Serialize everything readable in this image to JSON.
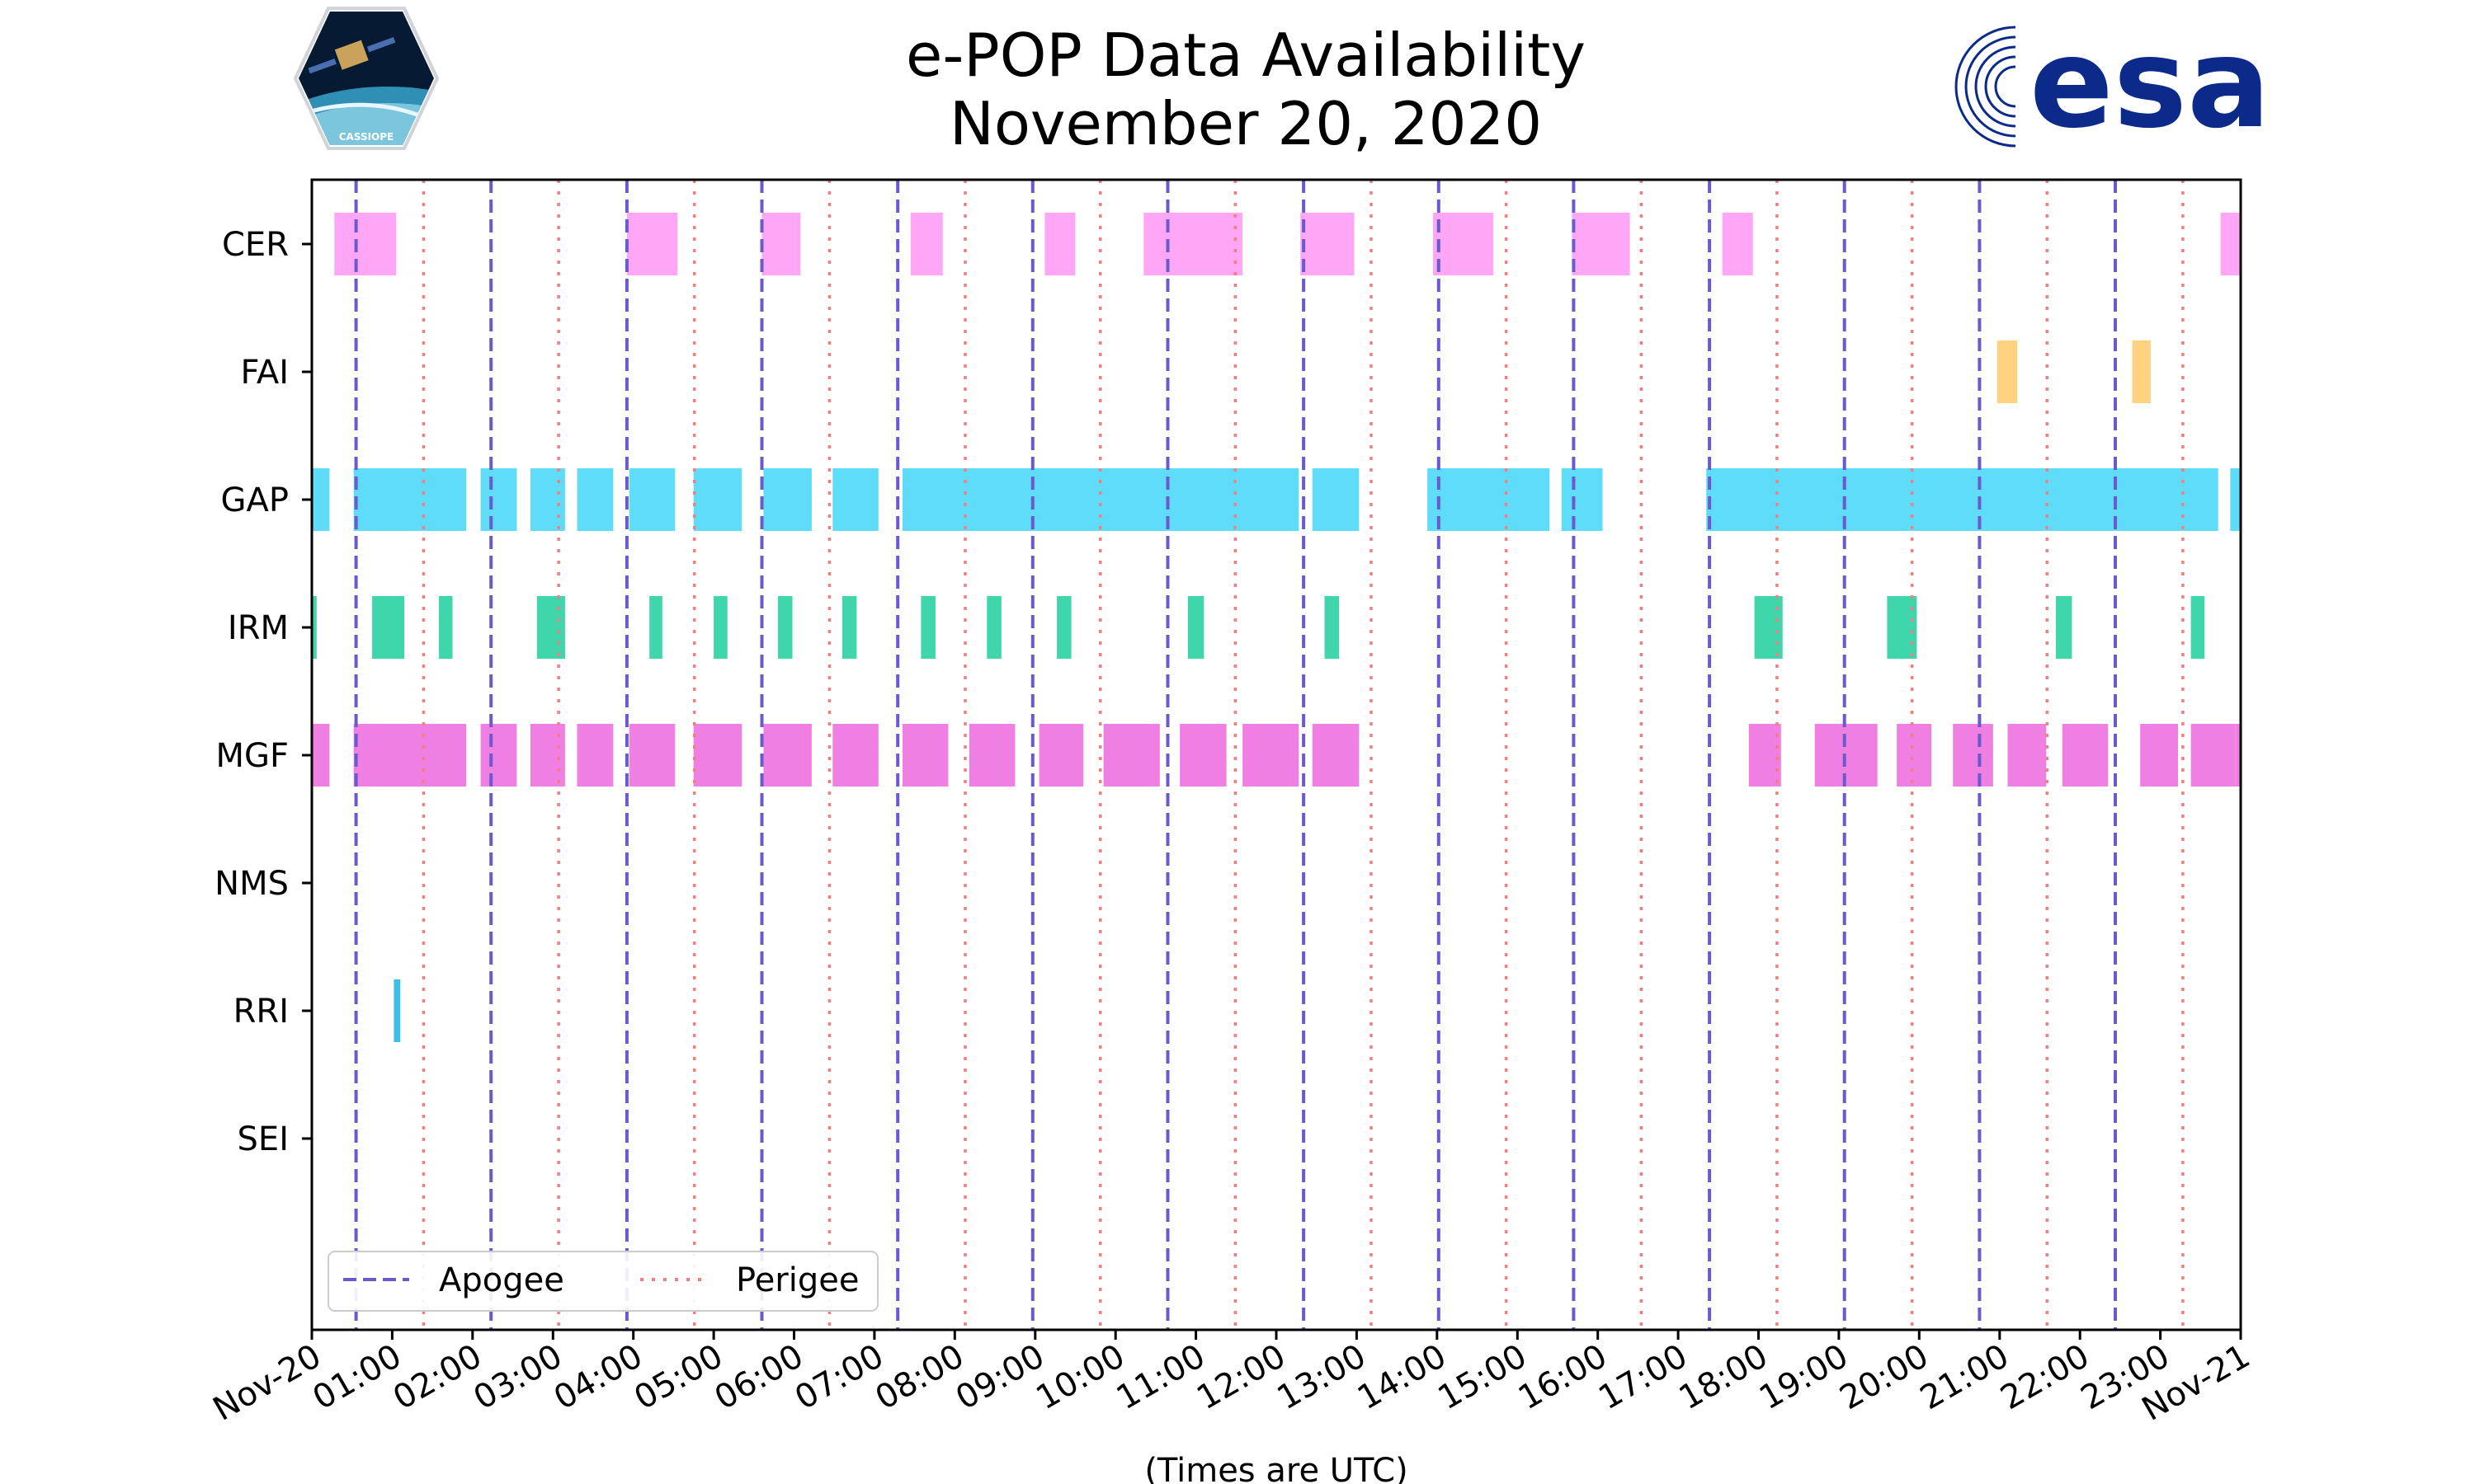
{
  "header": {
    "title_line1": "e-POP Data Availability",
    "title_line2": "November 20, 2020"
  },
  "logos": {
    "left_badge_text": "CASSIOPE",
    "right_brand_text": "esa"
  },
  "colors": {
    "apogee": "#6A5ACD",
    "perigee": "#F08080",
    "CER": "#FFA6F6",
    "FAI": "#FFD27F",
    "GAP": "#5EDCF9",
    "IRM": "#3ED6AA",
    "MGF": "#F07FE4",
    "NMS": "#AAAAAA",
    "RRI": "#3EBDE8",
    "SEI": "#AAAAAA",
    "esa_blue": "#0B2A8A"
  },
  "chart_data": {
    "type": "timeline",
    "title": "e-POP Data Availability November 20, 2020",
    "xlabel": "(Times are UTC)",
    "xlim": [
      0,
      24
    ],
    "x_unit": "hours UTC",
    "xtick_values": [
      0,
      1,
      2,
      3,
      4,
      5,
      6,
      7,
      8,
      9,
      10,
      11,
      12,
      13,
      14,
      15,
      16,
      17,
      18,
      19,
      20,
      21,
      22,
      23,
      24
    ],
    "xtick_labels": [
      "Nov-20",
      "01:00",
      "02:00",
      "03:00",
      "04:00",
      "05:00",
      "06:00",
      "07:00",
      "08:00",
      "09:00",
      "10:00",
      "11:00",
      "12:00",
      "13:00",
      "14:00",
      "15:00",
      "16:00",
      "17:00",
      "18:00",
      "19:00",
      "20:00",
      "21:00",
      "22:00",
      "23:00",
      "Nov-21"
    ],
    "instruments": [
      "CER",
      "FAI",
      "GAP",
      "IRM",
      "MGF",
      "NMS",
      "RRI",
      "SEI"
    ],
    "intervals": {
      "CER": [
        [
          0.28,
          1.05
        ],
        [
          3.92,
          4.55
        ],
        [
          5.6,
          6.08
        ],
        [
          7.45,
          7.85
        ],
        [
          9.12,
          9.5
        ],
        [
          10.35,
          11.58
        ],
        [
          12.3,
          12.97
        ],
        [
          13.95,
          14.7
        ],
        [
          15.68,
          16.4
        ],
        [
          17.55,
          17.93
        ],
        [
          23.75,
          24.0
        ]
      ],
      "FAI": [
        [
          20.97,
          21.22
        ],
        [
          22.65,
          22.88
        ]
      ],
      "GAP": [
        [
          0.0,
          0.22
        ],
        [
          0.52,
          1.92
        ],
        [
          2.1,
          2.55
        ],
        [
          2.72,
          3.15
        ],
        [
          3.3,
          3.75
        ],
        [
          3.95,
          4.52
        ],
        [
          4.75,
          5.35
        ],
        [
          5.62,
          6.22
        ],
        [
          6.48,
          7.05
        ],
        [
          7.35,
          12.28
        ],
        [
          12.45,
          13.03
        ],
        [
          13.88,
          15.4
        ],
        [
          15.55,
          16.06
        ],
        [
          17.35,
          23.72
        ],
        [
          23.87,
          24.0
        ]
      ],
      "IRM": [
        [
          0.0,
          0.06
        ],
        [
          0.75,
          1.15
        ],
        [
          1.58,
          1.75
        ],
        [
          2.8,
          3.15
        ],
        [
          4.2,
          4.36
        ],
        [
          5.0,
          5.17
        ],
        [
          5.8,
          5.98
        ],
        [
          6.6,
          6.78
        ],
        [
          7.58,
          7.76
        ],
        [
          8.4,
          8.58
        ],
        [
          9.27,
          9.45
        ],
        [
          10.9,
          11.1
        ],
        [
          12.6,
          12.78
        ],
        [
          17.95,
          18.3
        ],
        [
          19.6,
          19.97
        ],
        [
          21.7,
          21.9
        ],
        [
          23.38,
          23.55
        ]
      ],
      "MGF": [
        [
          0.0,
          0.22
        ],
        [
          0.52,
          1.92
        ],
        [
          2.1,
          2.55
        ],
        [
          2.72,
          3.15
        ],
        [
          3.3,
          3.75
        ],
        [
          3.95,
          4.52
        ],
        [
          4.75,
          5.35
        ],
        [
          5.62,
          6.22
        ],
        [
          6.48,
          7.05
        ],
        [
          7.35,
          7.92
        ],
        [
          8.18,
          8.75
        ],
        [
          9.05,
          9.6
        ],
        [
          9.85,
          10.55
        ],
        [
          10.8,
          11.38
        ],
        [
          11.58,
          12.28
        ],
        [
          12.45,
          13.03
        ],
        [
          17.88,
          18.28
        ],
        [
          18.7,
          19.48
        ],
        [
          19.72,
          20.15
        ],
        [
          20.42,
          20.92
        ],
        [
          21.1,
          21.58
        ],
        [
          21.78,
          22.35
        ],
        [
          22.75,
          23.22
        ],
        [
          23.38,
          23.93
        ],
        [
          23.93,
          24.0
        ]
      ],
      "NMS": [],
      "RRI": [
        [
          1.02,
          1.1
        ]
      ],
      "SEI": []
    },
    "apogee_hours": [
      0.55,
      2.23,
      3.92,
      5.6,
      7.29,
      8.97,
      10.65,
      12.34,
      14.02,
      15.7,
      17.39,
      19.07,
      20.75,
      22.44
    ],
    "perigee_hours": [
      1.39,
      3.07,
      4.76,
      6.44,
      8.13,
      9.81,
      11.49,
      13.18,
      14.86,
      16.54,
      18.23,
      19.91,
      21.59,
      23.28
    ],
    "legend": {
      "position": "lower-left",
      "entries": [
        {
          "label": "Apogee",
          "style": "dashed"
        },
        {
          "label": "Perigee",
          "style": "dotted"
        }
      ]
    }
  }
}
